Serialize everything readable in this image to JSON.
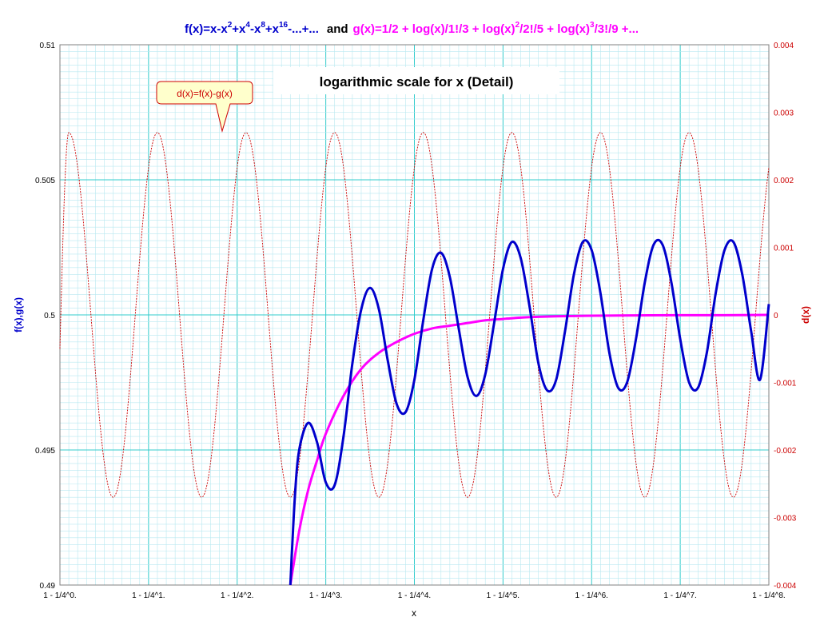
{
  "chart_data": {
    "type": "line",
    "title_parts": {
      "f_label": "f(x)=x-x",
      "f_exp1": "2",
      "f_mid1": "+x",
      "f_exp2": "4",
      "f_mid2": "-x",
      "f_exp3": "8",
      "f_mid3": "+x",
      "f_exp4": "16",
      "f_end": "-...+...",
      "and": "and",
      "g_label": "g(x)=1/2 + log(x)/1!/3 + log(x)",
      "g_exp1": "2",
      "g_mid1": "/2!/5 + log(x)",
      "g_exp2": "3",
      "g_end": "/3!/9 +..."
    },
    "subtitle": "logarithmic scale for x (Detail)",
    "annotation": "d(x)=f(x)-g(x)",
    "xlabel": "x",
    "ylabel_left": "f(x),g(x)",
    "ylabel_right": "d(x)",
    "x_ticks": [
      "1 - 1/4^0.",
      "1 - 1/4^1.",
      "1 - 1/4^2.",
      "1 - 1/4^3.",
      "1 - 1/4^4.",
      "1 - 1/4^5.",
      "1 - 1/4^6.",
      "1 - 1/4^7.",
      "1 - 1/4^8."
    ],
    "y_left_ticks": [
      "0.51",
      "0.505",
      "0.5",
      "0.495",
      "0.49"
    ],
    "y_right_ticks": [
      "0.004",
      "0.003",
      "0.002",
      "0.001",
      "0",
      "-0.001",
      "-0.002",
      "-0.003",
      "-0.004"
    ],
    "xlim": [
      0,
      8
    ],
    "ylim_left": [
      0.49,
      0.51
    ],
    "ylim_right": [
      -0.004,
      0.004
    ],
    "x_scale": "logarithmic in n where x = 1 - 1/4^n",
    "grid": true,
    "colors": {
      "f": "#0000cc",
      "g": "#ff00ff",
      "d": "#cc0000",
      "grid_major": "#33cccc",
      "grid_minor": "#b8e8f0"
    },
    "series": [
      {
        "key": "f",
        "n": [
          2.6,
          2.65,
          2.7,
          2.8,
          2.9,
          3.0,
          3.1,
          3.2,
          3.3,
          3.4,
          3.5,
          3.6,
          3.7,
          3.8,
          3.9,
          4.0,
          4.1,
          4.2,
          4.3,
          4.4,
          4.5,
          4.6,
          4.7,
          4.8,
          4.9,
          5.0,
          5.1,
          5.2,
          5.3,
          5.4,
          5.5,
          5.6,
          5.7,
          5.8,
          5.9,
          6.0,
          6.1,
          6.2,
          6.3,
          6.4,
          6.5,
          6.6,
          6.7,
          6.8,
          6.9,
          7.0,
          7.1,
          7.2,
          7.3,
          7.4,
          7.5,
          7.6,
          7.7,
          7.8,
          7.9,
          8.0
        ],
        "values": [
          0.49,
          0.4932,
          0.495,
          0.496,
          0.4953,
          0.4938,
          0.4937,
          0.4955,
          0.4982,
          0.5002,
          0.501,
          0.5002,
          0.4983,
          0.4967,
          0.4964,
          0.4976,
          0.4998,
          0.5017,
          0.5023,
          0.5014,
          0.4995,
          0.4977,
          0.497,
          0.4978,
          0.4997,
          0.5017,
          0.5027,
          0.5021,
          0.5003,
          0.4982,
          0.4972,
          0.4976,
          0.4994,
          0.5015,
          0.5027,
          0.5024,
          0.5008,
          0.4986,
          0.4973,
          0.4975,
          0.4991,
          0.5012,
          0.5026,
          0.5026,
          0.5012,
          0.4991,
          0.4975,
          0.4973,
          0.4986,
          0.5008,
          0.5024,
          0.5027,
          0.5015,
          0.4994,
          0.4976,
          0.5004
        ]
      },
      {
        "key": "g",
        "n": [
          2.6,
          2.7,
          2.8,
          2.9,
          3.0,
          3.2,
          3.4,
          3.6,
          3.8,
          4.0,
          4.2,
          4.4,
          4.6,
          4.8,
          5.0,
          5.2,
          5.4,
          5.6,
          5.8,
          6.0,
          6.5,
          7.0,
          7.5,
          8.0
        ],
        "values": [
          0.49,
          0.492,
          0.4935,
          0.4946,
          0.4956,
          0.497,
          0.498,
          0.4986,
          0.499,
          0.4993,
          0.4995,
          0.4996,
          0.4997,
          0.4998,
          0.49985,
          0.4999,
          0.49993,
          0.49995,
          0.49996,
          0.49997,
          0.49998,
          0.49999,
          0.49999,
          0.5
        ]
      },
      {
        "key": "d",
        "n_start": 0.0,
        "n_end": 8.0,
        "amplitude": 0.0027,
        "period": 1.0,
        "peak_at": 0.1,
        "start_value": -0.0005
      }
    ]
  }
}
